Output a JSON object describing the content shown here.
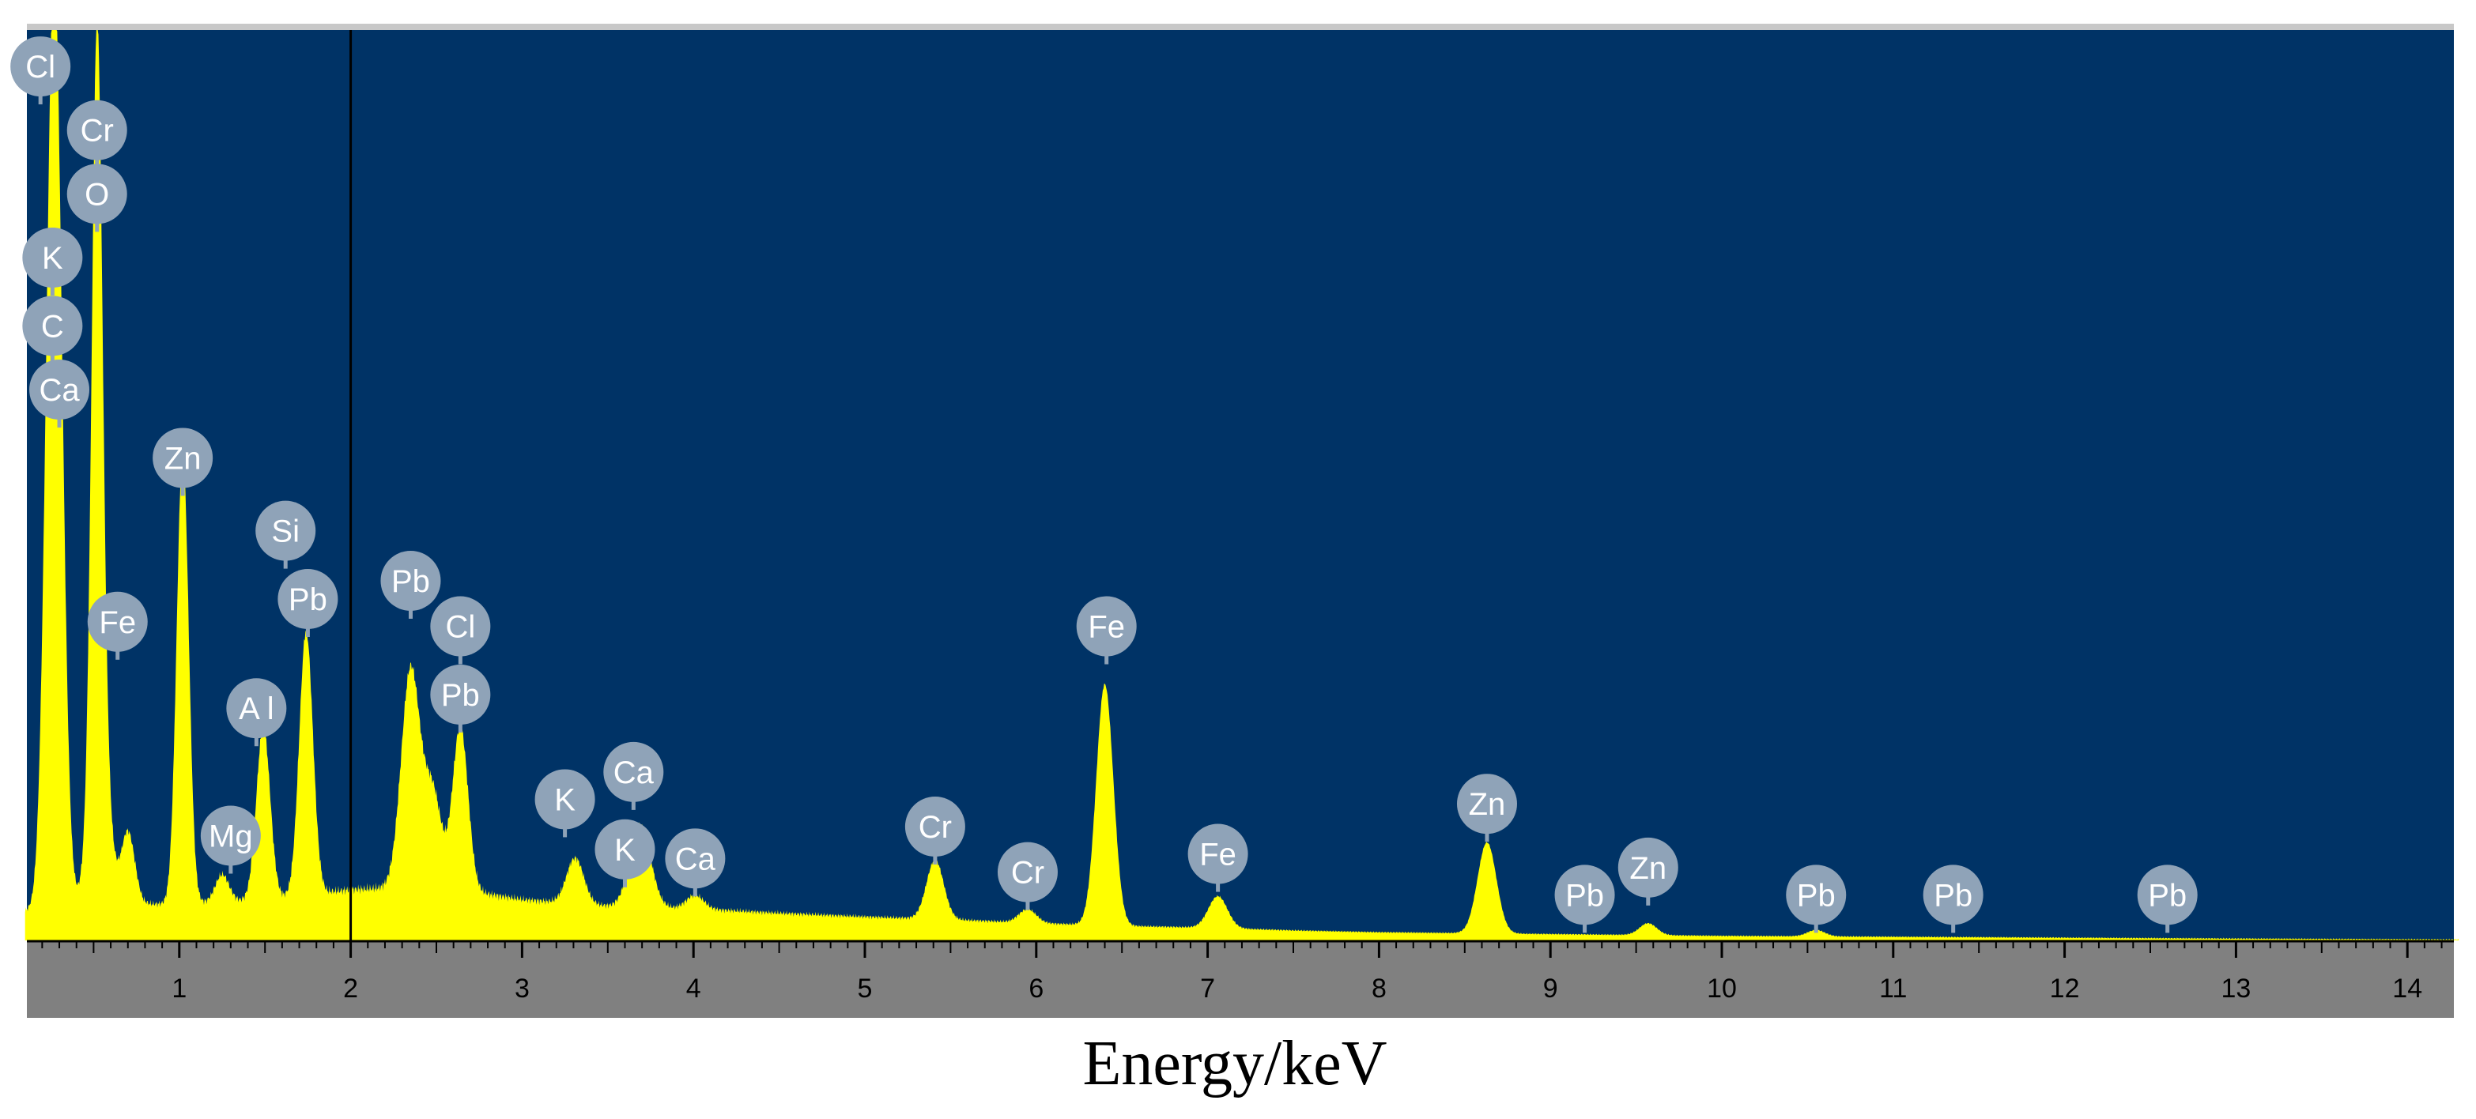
{
  "chart_data": {
    "type": "area",
    "title": "",
    "xlabel": "Energy/keV",
    "ylabel": "",
    "xlim": [
      0.1,
      14.3
    ],
    "ylim": [
      0,
      100
    ],
    "x_ticks": [
      1,
      2,
      3,
      4,
      5,
      6,
      7,
      8,
      9,
      10,
      11,
      12,
      13,
      14
    ],
    "cursor_marker_x": 2.0,
    "grid": false,
    "legend": "none",
    "colors": {
      "background": "#003366",
      "spectrum": "#ffff00",
      "axis_band": "#808080",
      "label_bubble": "#8fa3b8",
      "label_text": "#ffffff"
    },
    "series": [
      {
        "baseline_points": [
          [
            0.1,
            3.2
          ],
          [
            0.5,
            4.0
          ],
          [
            1.0,
            4.0
          ],
          [
            1.5,
            4.5
          ],
          [
            2.0,
            5.6
          ],
          [
            2.5,
            6.0
          ],
          [
            3.0,
            4.5
          ],
          [
            3.5,
            3.8
          ],
          [
            4.0,
            3.5
          ],
          [
            4.5,
            3.0
          ],
          [
            5.0,
            2.6
          ],
          [
            5.5,
            2.3
          ],
          [
            6.0,
            1.9
          ],
          [
            6.5,
            1.6
          ],
          [
            7.0,
            1.4
          ],
          [
            7.5,
            1.1
          ],
          [
            8.0,
            0.9
          ],
          [
            8.5,
            0.8
          ],
          [
            9.0,
            0.7
          ],
          [
            9.5,
            0.6
          ],
          [
            10.0,
            0.5
          ],
          [
            11.0,
            0.4
          ],
          [
            12.0,
            0.3
          ],
          [
            13.0,
            0.2
          ],
          [
            14.3,
            0.1
          ]
        ],
        "peaks": [
          {
            "x": 0.27,
            "height": 104,
            "width": 0.045
          },
          {
            "x": 0.52,
            "height": 72,
            "width": 0.03
          },
          {
            "x": 0.7,
            "height": 8,
            "width": 0.04
          },
          {
            "x": 0.53,
            "height": 26,
            "width": 0.05
          },
          {
            "x": 1.02,
            "height": 50,
            "width": 0.035
          },
          {
            "x": 1.25,
            "height": 3,
            "width": 0.04
          },
          {
            "x": 1.49,
            "height": 19,
            "width": 0.04
          },
          {
            "x": 1.74,
            "height": 29,
            "width": 0.04
          },
          {
            "x": 2.35,
            "height": 24,
            "width": 0.055
          },
          {
            "x": 2.48,
            "height": 10,
            "width": 0.05
          },
          {
            "x": 2.64,
            "height": 18,
            "width": 0.045
          },
          {
            "x": 3.31,
            "height": 5,
            "width": 0.05
          },
          {
            "x": 3.69,
            "height": 9,
            "width": 0.06
          },
          {
            "x": 4.01,
            "height": 1.5,
            "width": 0.05
          },
          {
            "x": 5.41,
            "height": 6.5,
            "width": 0.05
          },
          {
            "x": 5.95,
            "height": 1.5,
            "width": 0.05
          },
          {
            "x": 6.4,
            "height": 26.5,
            "width": 0.05
          },
          {
            "x": 7.06,
            "height": 3.5,
            "width": 0.055
          },
          {
            "x": 8.63,
            "height": 10,
            "width": 0.055
          },
          {
            "x": 9.57,
            "height": 1.3,
            "width": 0.05
          },
          {
            "x": 10.55,
            "height": 0.7,
            "width": 0.05
          }
        ]
      }
    ],
    "peak_labels": [
      {
        "label": "Cl",
        "x": 0.19,
        "y": 96
      },
      {
        "label": "Cr",
        "x": 0.52,
        "y": 89
      },
      {
        "label": "O",
        "x": 0.52,
        "y": 82
      },
      {
        "label": "K",
        "x": 0.26,
        "y": 75
      },
      {
        "label": "C",
        "x": 0.26,
        "y": 67.5
      },
      {
        "label": "Ca",
        "x": 0.3,
        "y": 60.5
      },
      {
        "label": "Zn",
        "x": 1.02,
        "y": 53
      },
      {
        "label": "Si",
        "x": 1.62,
        "y": 45
      },
      {
        "label": "Pb",
        "x": 1.75,
        "y": 37.5
      },
      {
        "label": "Fe",
        "x": 0.64,
        "y": 35
      },
      {
        "label": "A l",
        "x": 1.45,
        "y": 25.5
      },
      {
        "label": "Mg",
        "x": 1.3,
        "y": 11.5
      },
      {
        "label": "Pb",
        "x": 2.35,
        "y": 39.5
      },
      {
        "label": "Cl",
        "x": 2.64,
        "y": 34.5
      },
      {
        "label": "Pb",
        "x": 2.64,
        "y": 27
      },
      {
        "label": "K",
        "x": 3.25,
        "y": 15.5
      },
      {
        "label": "Ca",
        "x": 3.65,
        "y": 18.5
      },
      {
        "label": "K",
        "x": 3.6,
        "y": 10
      },
      {
        "label": "Ca",
        "x": 4.01,
        "y": 9
      },
      {
        "label": "Cr",
        "x": 5.41,
        "y": 12.5
      },
      {
        "label": "Cr",
        "x": 5.95,
        "y": 7.5
      },
      {
        "label": "Fe",
        "x": 6.41,
        "y": 34.5
      },
      {
        "label": "Fe",
        "x": 7.06,
        "y": 9.5
      },
      {
        "label": "Zn",
        "x": 8.63,
        "y": 15
      },
      {
        "label": "Pb",
        "x": 9.2,
        "y": 5
      },
      {
        "label": "Zn",
        "x": 9.57,
        "y": 8
      },
      {
        "label": "Pb",
        "x": 10.55,
        "y": 5
      },
      {
        "label": "Pb",
        "x": 11.35,
        "y": 5
      },
      {
        "label": "Pb",
        "x": 12.6,
        "y": 5
      }
    ]
  }
}
